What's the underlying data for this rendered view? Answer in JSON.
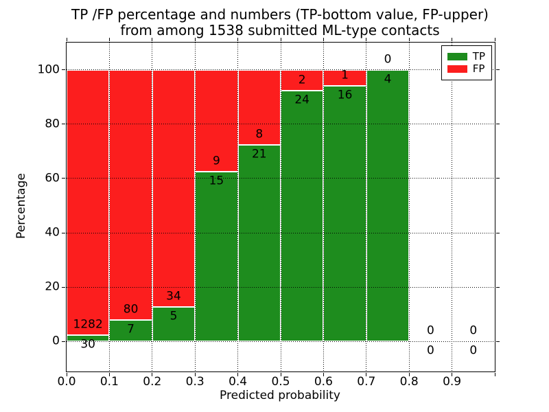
{
  "chart_data": {
    "type": "bar",
    "stacked": true,
    "unit": "percent",
    "title_line1": "TP /FP percentage and numbers (TP-bottom value, FP-upper)",
    "title_line2": "from among 1538 submitted ML-type contacts",
    "total_contacts": 1538,
    "xlabel": "Predicted probability",
    "ylabel": "Percentage",
    "xlim": [
      0.0,
      1.0
    ],
    "ylim": [
      -11,
      110
    ],
    "grid": true,
    "legend_position": "upper right",
    "legend": [
      {
        "label": "TP",
        "color": "#1e8c1e"
      },
      {
        "label": "FP",
        "color": "#fc1e1e"
      }
    ],
    "xticks": [
      {
        "value": 0.0,
        "label": "0.0"
      },
      {
        "value": 0.1,
        "label": "0.1"
      },
      {
        "value": 0.2,
        "label": "0.2"
      },
      {
        "value": 0.3,
        "label": "0.3"
      },
      {
        "value": 0.4,
        "label": "0.4"
      },
      {
        "value": 0.5,
        "label": "0.5"
      },
      {
        "value": 0.6,
        "label": "0.6"
      },
      {
        "value": 0.7,
        "label": "0.7"
      },
      {
        "value": 0.8,
        "label": "0.8"
      },
      {
        "value": 0.9,
        "label": "0.9"
      },
      {
        "value": 1.0,
        "label": ""
      }
    ],
    "yticks": [
      {
        "value": 0,
        "label": "0"
      },
      {
        "value": 20,
        "label": "20"
      },
      {
        "value": 40,
        "label": "40"
      },
      {
        "value": 60,
        "label": "60"
      },
      {
        "value": 80,
        "label": "80"
      },
      {
        "value": 100,
        "label": "100"
      }
    ],
    "bins": [
      {
        "range": [
          0.0,
          0.1
        ],
        "tp": 30,
        "fp": 1282
      },
      {
        "range": [
          0.1,
          0.2
        ],
        "tp": 7,
        "fp": 80
      },
      {
        "range": [
          0.2,
          0.3
        ],
        "tp": 5,
        "fp": 34
      },
      {
        "range": [
          0.3,
          0.4
        ],
        "tp": 15,
        "fp": 9
      },
      {
        "range": [
          0.4,
          0.5
        ],
        "tp": 21,
        "fp": 8
      },
      {
        "range": [
          0.5,
          0.6
        ],
        "tp": 24,
        "fp": 2
      },
      {
        "range": [
          0.6,
          0.7
        ],
        "tp": 16,
        "fp": 1
      },
      {
        "range": [
          0.7,
          0.8
        ],
        "tp": 4,
        "fp": 0
      },
      {
        "range": [
          0.8,
          0.9
        ],
        "tp": 0,
        "fp": 0
      },
      {
        "range": [
          0.9,
          1.0
        ],
        "tp": 0,
        "fp": 0
      }
    ]
  }
}
